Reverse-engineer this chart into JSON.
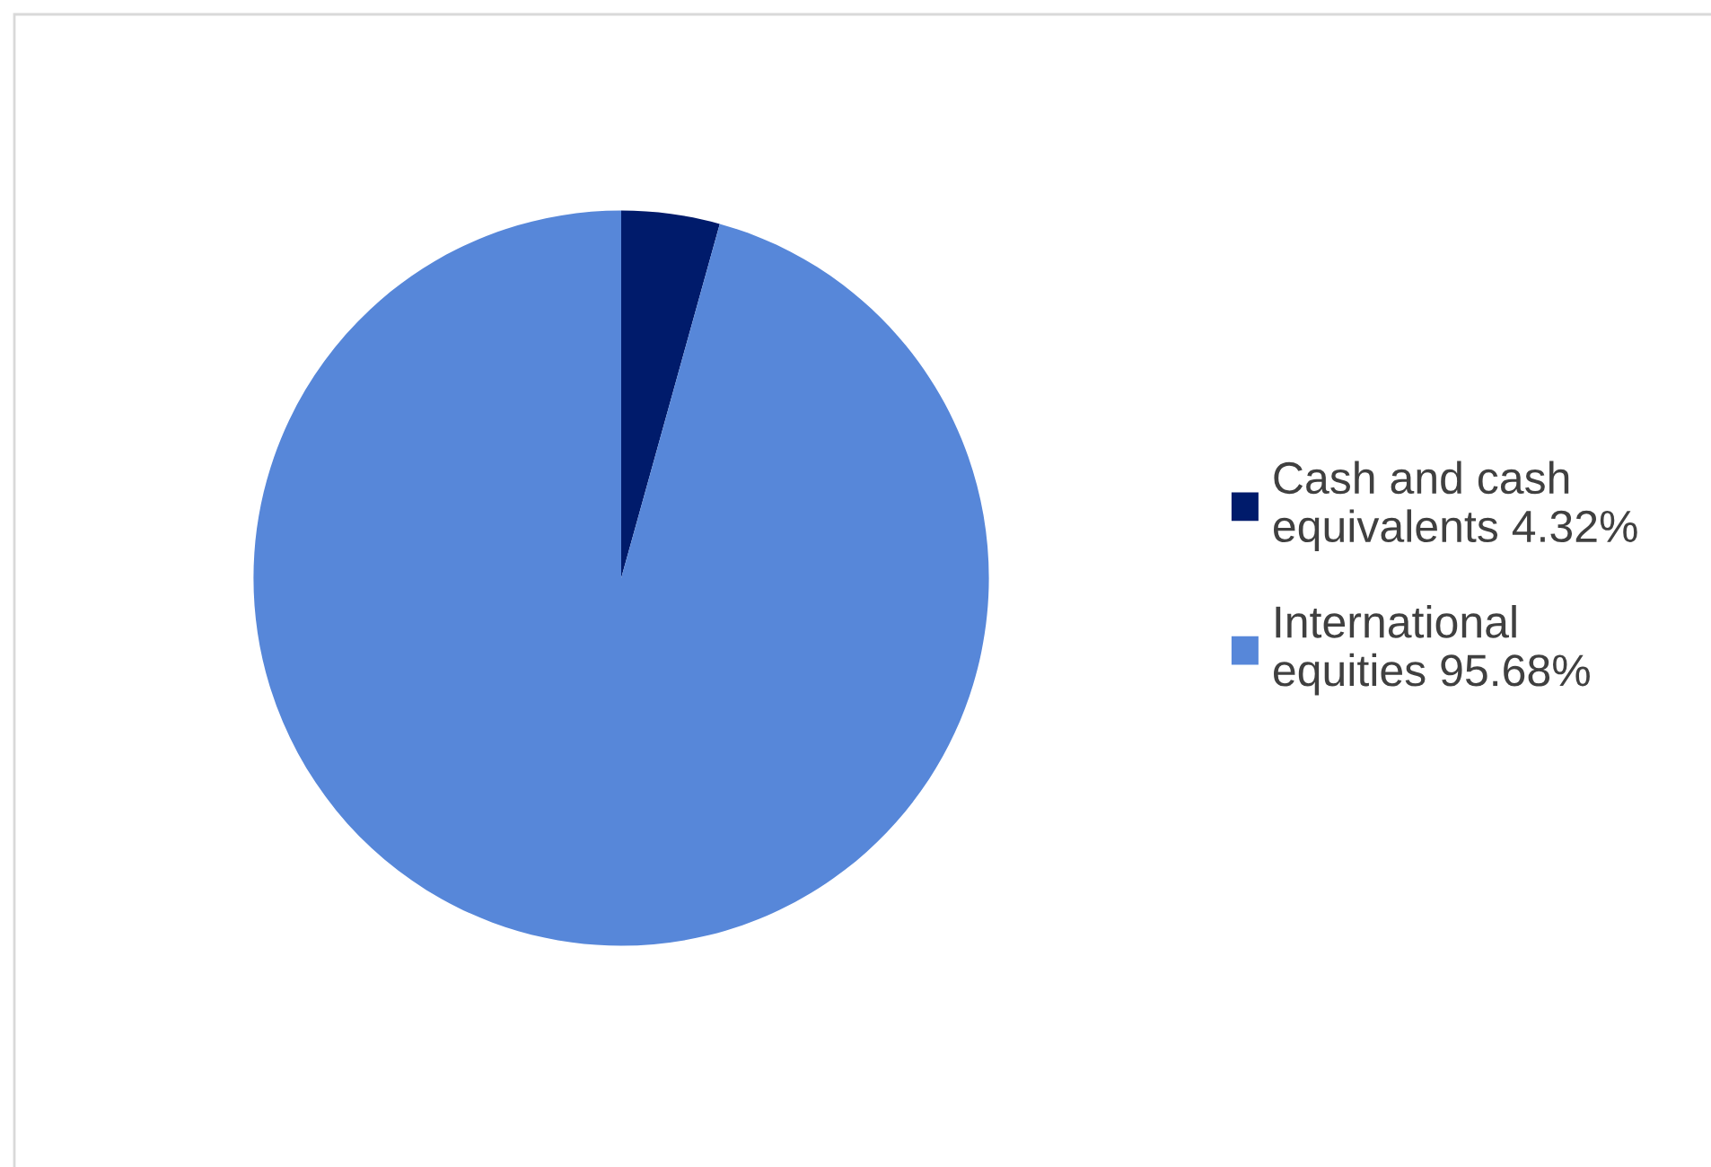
{
  "chart_data": {
    "type": "pie",
    "categories": [
      "Cash and cash\nequivalents 4.32%",
      "International\nequities 95.68%"
    ],
    "values": [
      4.32,
      95.68
    ],
    "colors": [
      "#001b6b",
      "#5787d9"
    ],
    "legend": "right"
  }
}
